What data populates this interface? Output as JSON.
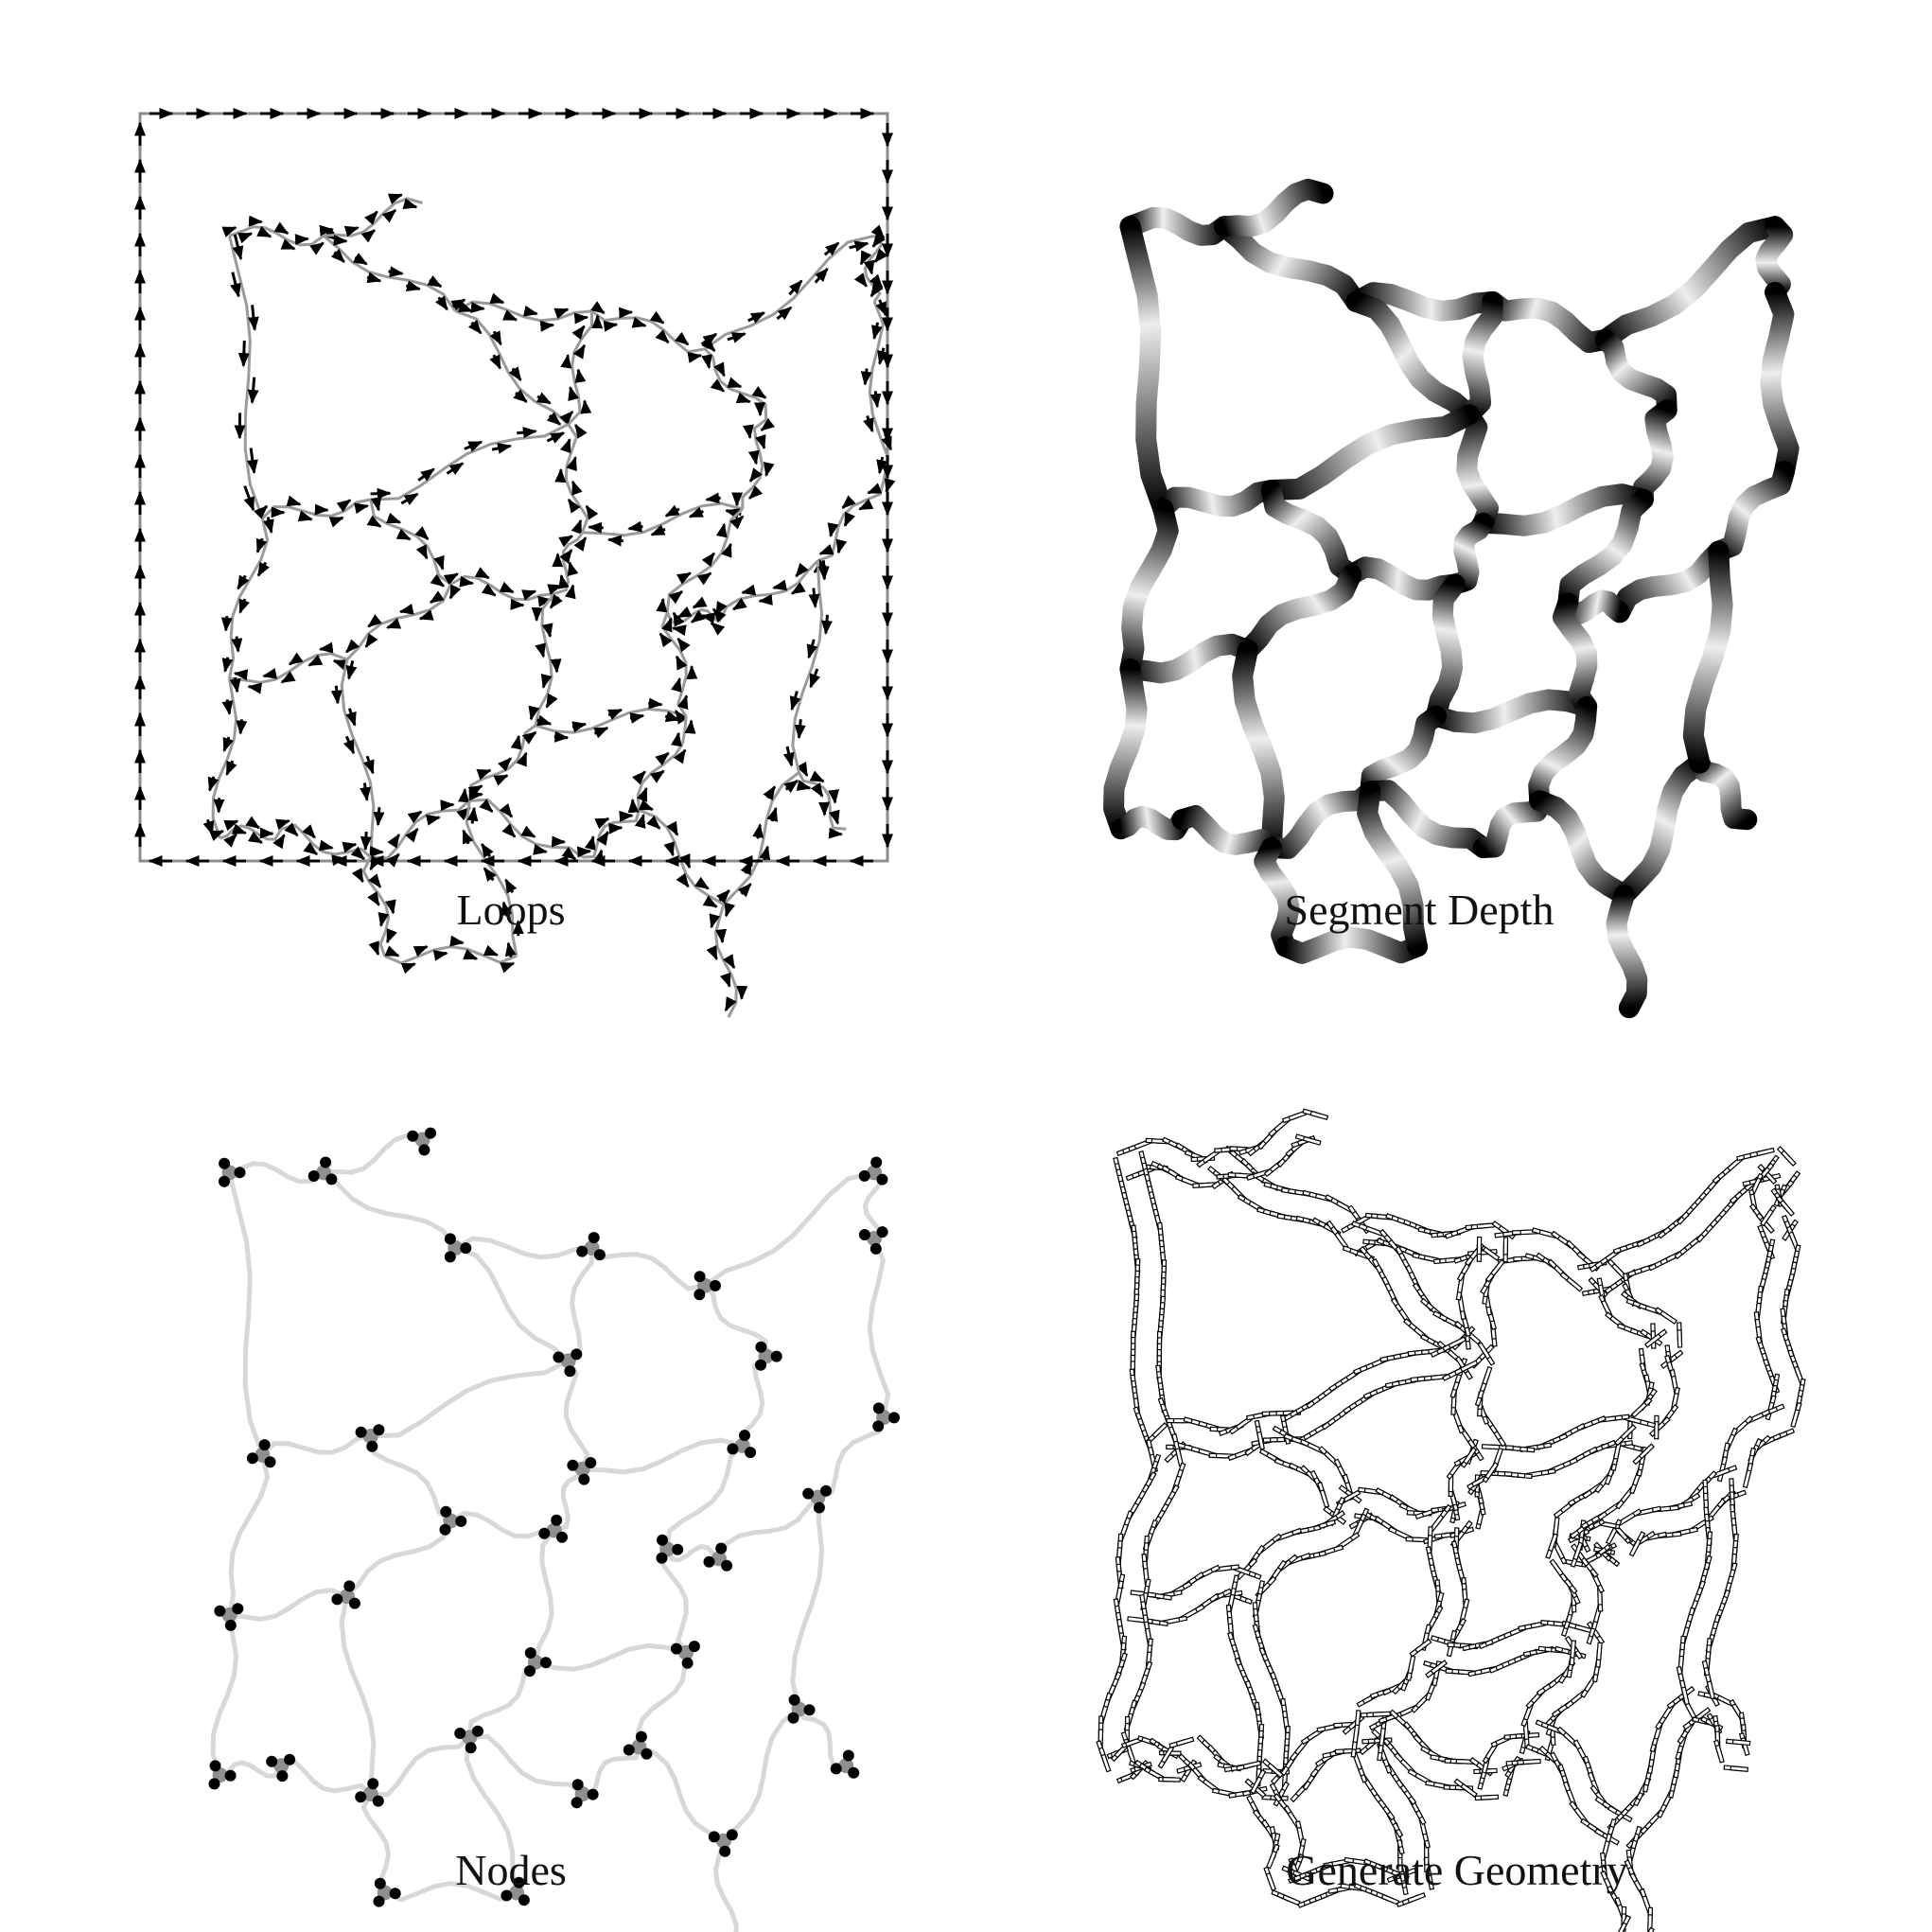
{
  "panels": [
    {
      "id": "loops",
      "caption": "Loops",
      "style": "arrows"
    },
    {
      "id": "depth",
      "caption": "Segment Depth",
      "style": "depth"
    },
    {
      "id": "nodes",
      "caption": "Nodes",
      "style": "nodes"
    },
    {
      "id": "geometry",
      "caption": "Generate Geometry",
      "style": "geometry"
    }
  ],
  "colors": {
    "background": "#ffffff",
    "ink": "#000000",
    "frame": "#8c8c8c",
    "segment_grey": "#9a9a9a",
    "nodes_path": "#d8d8d8",
    "node_secondary": "#8f8f8f"
  }
}
